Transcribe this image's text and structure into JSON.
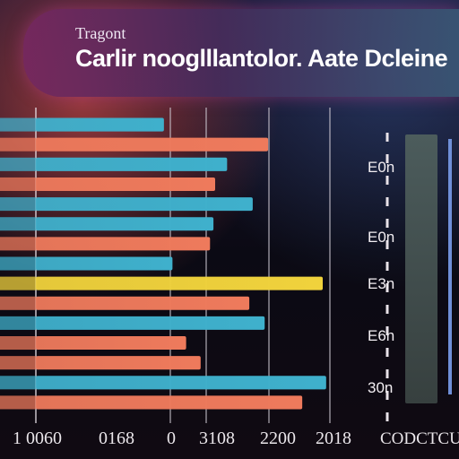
{
  "chart_data": {
    "type": "bar",
    "orientation": "horizontal",
    "subtitle": "Tragont",
    "title": "Carlir nooglllantolor. Aate Dcleine",
    "x_tick_labels": [
      "1 0060",
      "0168",
      "0",
      "3108",
      "2200",
      "2018",
      "CODCTCU"
    ],
    "y_tick_labels": [
      "E0n",
      "E0n",
      "E3n",
      "E6n",
      "30n"
    ],
    "xlabel": "",
    "ylabel": "",
    "xlim": [
      0,
      420
    ],
    "grid": true,
    "legend": "none",
    "series": [
      {
        "color": "#ee7a5c",
        "values": [
          150,
          272,
          204,
          164,
          163,
          252,
          195
        ]
      },
      {
        "color": "#3fb0cc",
        "values": [
          228,
          224,
          254,
          208,
          174,
          268,
          340
        ]
      },
      {
        "color": "#f0d23c",
        "values": [
          0,
          0,
          0,
          0,
          336,
          0,
          0
        ]
      }
    ],
    "rows": [
      {
        "series": 1,
        "value": 150
      },
      {
        "series": 0,
        "value": 272
      },
      {
        "series": 1,
        "value": 224
      },
      {
        "series": 0,
        "value": 210
      },
      {
        "series": 1,
        "value": 254
      },
      {
        "series": 1,
        "value": 208
      },
      {
        "series": 0,
        "value": 204
      },
      {
        "series": 1,
        "value": 160
      },
      {
        "series": 2,
        "value": 336
      },
      {
        "series": 0,
        "value": 250
      },
      {
        "series": 1,
        "value": 268
      },
      {
        "series": 0,
        "value": 176
      },
      {
        "series": 0,
        "value": 193
      },
      {
        "series": 1,
        "value": 340
      },
      {
        "series": 0,
        "value": 312
      }
    ]
  }
}
